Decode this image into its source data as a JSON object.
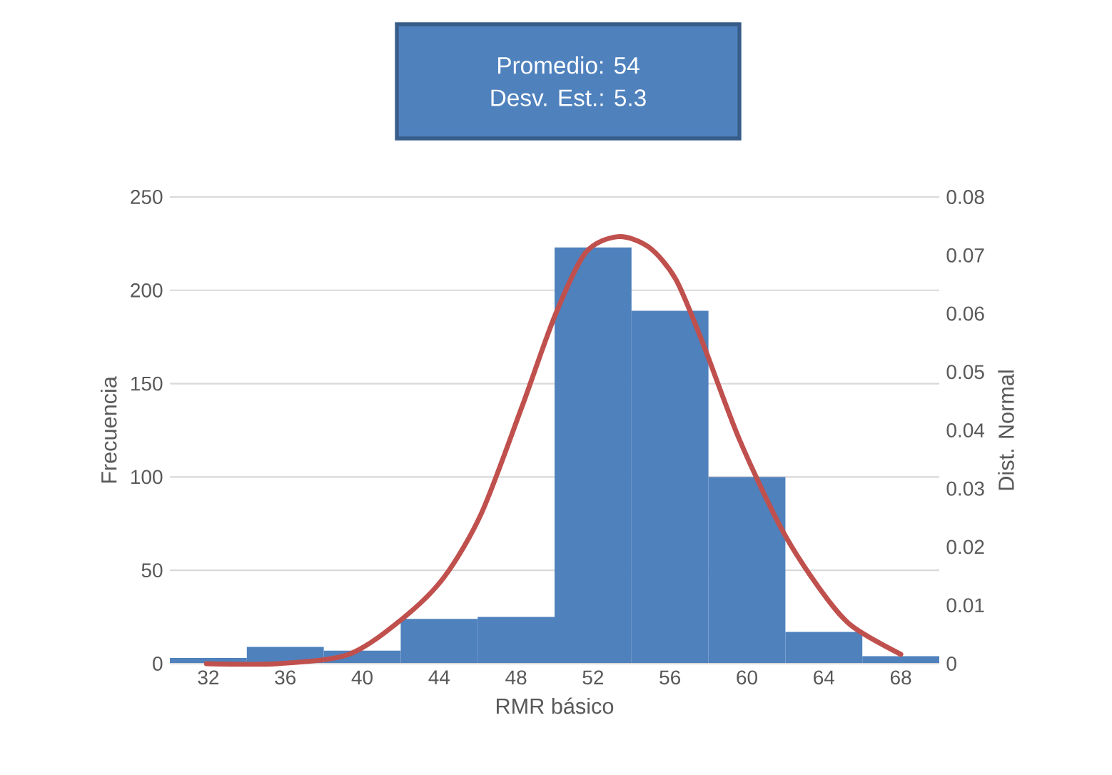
{
  "chart_data": {
    "type": "histogram",
    "xlabel": "RMR básico",
    "ylabel": "Frecuencia",
    "y2label": "Dist. Normal",
    "annotations": [
      "Promedio: 54",
      "Desv. Est.: 5.3"
    ],
    "bins": [
      30,
      34,
      38,
      42,
      46,
      50,
      54,
      58,
      62,
      66,
      70
    ],
    "values": [
      3,
      9,
      7,
      24,
      25,
      223,
      189,
      100,
      17,
      4
    ],
    "color": "#4f81bd",
    "series": [
      {
        "type": "line",
        "axis": "y2",
        "color": "#c0504d",
        "x": [
          31.9,
          35.6,
          39.3,
          42.05,
          44.25,
          46.2,
          48.3,
          50.0,
          51.6,
          53.3,
          54.9,
          56.3,
          57.7,
          59.6,
          61.8,
          63.75,
          65.4,
          68.0
        ],
        "values": [
          0.0,
          0.0,
          0.0016,
          0.0076,
          0.0148,
          0.0258,
          0.044,
          0.0595,
          0.0704,
          0.0732,
          0.0714,
          0.0659,
          0.055,
          0.0385,
          0.0231,
          0.013,
          0.0066,
          0.0016
        ]
      }
    ],
    "xlim": [
      30,
      70
    ],
    "xticks": [
      32,
      36,
      40,
      44,
      48,
      52,
      56,
      60,
      64,
      68
    ],
    "ylim": [
      0,
      250
    ],
    "yticks": [
      0,
      50,
      100,
      150,
      200,
      250
    ],
    "y2lim": [
      0,
      0.08
    ],
    "y2ticks": [
      {
        "value": 0,
        "label": "0"
      },
      {
        "value": 0.01,
        "label": "0.01"
      },
      {
        "value": 0.02,
        "label": "0.02"
      },
      {
        "value": 0.03,
        "label": "0.03"
      },
      {
        "value": 0.04,
        "label": "0.04"
      },
      {
        "value": 0.05,
        "label": "0.05"
      },
      {
        "value": 0.06,
        "label": "0.06"
      },
      {
        "value": 0.07,
        "label": "0.07"
      },
      {
        "value": 0.08,
        "label": "0.08"
      }
    ],
    "grid": "y"
  }
}
